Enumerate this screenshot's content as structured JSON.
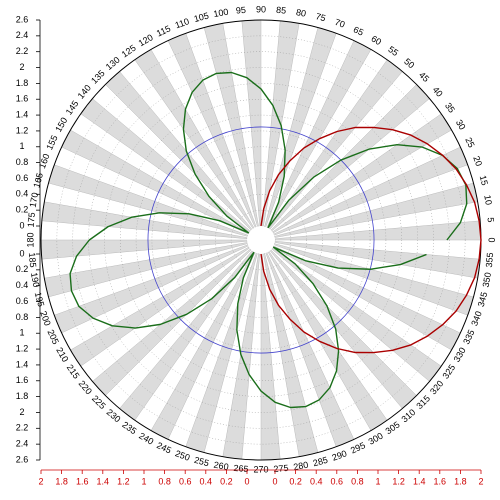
{
  "chart_data": {
    "type": "polar",
    "theta_ticks": [
      0,
      5,
      10,
      15,
      20,
      25,
      30,
      35,
      40,
      45,
      50,
      55,
      60,
      65,
      70,
      75,
      80,
      85,
      90,
      95,
      100,
      105,
      110,
      115,
      120,
      125,
      130,
      135,
      140,
      145,
      150,
      155,
      160,
      165,
      170,
      175,
      180,
      185,
      190,
      195,
      200,
      205,
      210,
      215,
      220,
      225,
      230,
      235,
      240,
      245,
      250,
      255,
      260,
      265,
      270,
      275,
      280,
      285,
      290,
      295,
      300,
      305,
      310,
      315,
      320,
      325,
      330,
      335,
      340,
      345,
      350,
      355
    ],
    "rlim": [
      0,
      2.6
    ],
    "rticks": [
      0,
      0.2,
      0.4,
      0.6,
      0.8,
      1,
      1.2,
      1.4,
      1.6,
      1.8,
      2,
      2.2,
      2.4,
      2.6
    ],
    "r2lim": [
      0,
      2
    ],
    "r2ticks": [
      0,
      0.2,
      0.4,
      0.6,
      0.8,
      1,
      1.2,
      1.4,
      1.6,
      1.8,
      2
    ],
    "r2_color": "#cc0000",
    "reference_circle": {
      "value": 1.25,
      "color": "#4444cc"
    },
    "series": [
      {
        "color": "#1a6e1a",
        "axis": "r",
        "theta": [
          0,
          5,
          10,
          15,
          20,
          25,
          30,
          35,
          40,
          45,
          50,
          55,
          60,
          65,
          70,
          75,
          80,
          85,
          90,
          95,
          100,
          105,
          110,
          115,
          120,
          125,
          130,
          135,
          140,
          145,
          150,
          155,
          160,
          165,
          170,
          175,
          180,
          185,
          190,
          195,
          200,
          205,
          210,
          215,
          220,
          225,
          230,
          235,
          240,
          245,
          250,
          255,
          260,
          265,
          270,
          275,
          280,
          285,
          290,
          295,
          300,
          305,
          310,
          315,
          320,
          325,
          330,
          335,
          340,
          345,
          350,
          355
        ],
        "values": [
          2.17,
          2.35,
          2.46,
          2.5,
          2.46,
          2.35,
          2.17,
          1.92,
          1.61,
          1.25,
          0.86,
          0.44,
          0,
          0.35,
          0.68,
          1.0,
          1.29,
          1.53,
          1.73,
          1.88,
          1.97,
          2.0,
          1.97,
          1.88,
          1.73,
          1.53,
          1.29,
          1.0,
          0.68,
          0.35,
          0,
          0.4,
          0.79,
          1.15,
          1.48,
          1.76,
          1.99,
          2.16,
          2.27,
          2.3,
          2.27,
          2.16,
          1.99,
          1.76,
          1.48,
          1.15,
          0.79,
          0.4,
          0,
          0.35,
          0.68,
          1.0,
          1.29,
          1.53,
          1.73,
          1.88,
          1.97,
          2.0,
          1.97,
          1.88,
          1.73,
          1.53,
          1.29,
          1.0,
          0.68,
          0.35,
          0,
          0.44,
          0.86,
          1.25,
          1.61,
          1.92
        ]
      },
      {
        "color": "#aa0000",
        "axis": "r2",
        "theta": [
          270,
          275,
          280,
          285,
          290,
          295,
          300,
          305,
          310,
          315,
          320,
          325,
          330,
          335,
          340,
          345,
          350,
          355,
          0,
          5,
          10,
          15,
          20,
          25,
          30,
          35,
          40,
          45,
          50,
          55,
          60,
          65,
          70,
          75,
          80,
          85,
          90
        ],
        "values": [
          0,
          0.17,
          0.35,
          0.52,
          0.68,
          0.85,
          1,
          1.15,
          1.29,
          1.41,
          1.53,
          1.64,
          1.73,
          1.81,
          1.88,
          1.93,
          1.97,
          1.99,
          2,
          1.99,
          1.97,
          1.93,
          1.88,
          1.81,
          1.73,
          1.64,
          1.53,
          1.41,
          1.29,
          1.15,
          1,
          0.85,
          0.68,
          0.52,
          0.35,
          0.17,
          0
        ]
      }
    ]
  }
}
